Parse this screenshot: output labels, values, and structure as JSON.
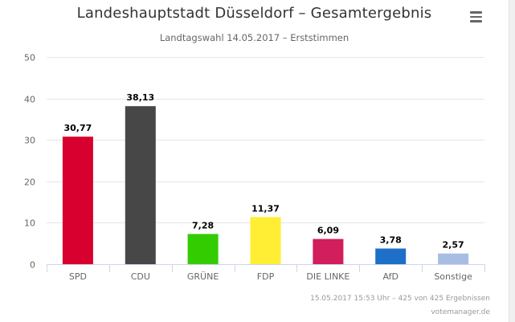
{
  "header": {
    "title": "Landeshauptstadt Düsseldorf – Gesamtergebnis",
    "subtitle": "Landtagswahl 14.05.2017 – Erststimmen"
  },
  "menu": {
    "icon": "hamburger-menu-icon"
  },
  "credits": {
    "status": "15.05.2017 15:53 Uhr – 425 von 425 Ergebnissen",
    "source": "votemanager.de"
  },
  "chart_data": {
    "type": "bar",
    "title": "Landeshauptstadt Düsseldorf – Gesamtergebnis",
    "subtitle": "Landtagswahl 14.05.2017 – Erststimmen",
    "xlabel": "",
    "ylabel": "",
    "ylim": [
      0,
      50
    ],
    "yticks": [
      0,
      10,
      20,
      30,
      40,
      50
    ],
    "ytick_labels": [
      "0",
      "10",
      "20",
      "30",
      "40",
      "50"
    ],
    "grid": true,
    "legend": "none",
    "categories": [
      "SPD",
      "CDU",
      "GRÜNE",
      "FDP",
      "DIE LINKE",
      "AfD",
      "Sonstige"
    ],
    "values": [
      30.77,
      38.13,
      7.28,
      11.37,
      6.09,
      3.78,
      2.57
    ],
    "value_labels": [
      "30,77",
      "38,13",
      "7,28",
      "11,37",
      "6,09",
      "3,78",
      "2,57"
    ],
    "colors": [
      "#d7002e",
      "#474747",
      "#33cc00",
      "#ffee33",
      "#d21e5c",
      "#1e6fc8",
      "#a7bde3"
    ]
  }
}
